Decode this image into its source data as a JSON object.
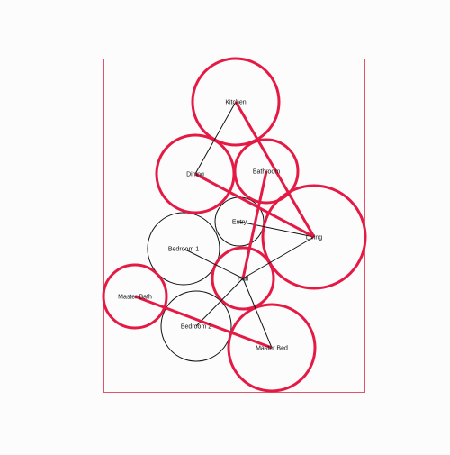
{
  "diagram": {
    "colors": {
      "background": "#fcfcfc",
      "frame": "#e0556a",
      "highlight": "#e41a45",
      "normal": "#111111"
    },
    "rooms": [
      {
        "id": "kitchen",
        "label": "Kitchen",
        "highlighted": true
      },
      {
        "id": "dining",
        "label": "Dining",
        "highlighted": true
      },
      {
        "id": "bathroom",
        "label": "Bathroom",
        "highlighted": true
      },
      {
        "id": "entry",
        "label": "Entry",
        "highlighted": false
      },
      {
        "id": "living",
        "label": "Living",
        "highlighted": true
      },
      {
        "id": "bedroom1",
        "label": "Bedroom 1",
        "highlighted": false
      },
      {
        "id": "hall",
        "label": "Hall",
        "highlighted": true
      },
      {
        "id": "masterbath",
        "label": "Master Bath",
        "highlighted": true
      },
      {
        "id": "bedroom2",
        "label": "Bedroom 2",
        "highlighted": false
      },
      {
        "id": "masterbed",
        "label": "Master Bed",
        "highlighted": true
      }
    ],
    "connections": [
      {
        "from": "kitchen",
        "to": "dining",
        "highlighted": false
      },
      {
        "from": "kitchen",
        "to": "living",
        "highlighted": true
      },
      {
        "from": "dining",
        "to": "living",
        "highlighted": true
      },
      {
        "from": "bathroom",
        "to": "hall",
        "highlighted": true
      },
      {
        "from": "entry",
        "to": "living",
        "highlighted": false
      },
      {
        "from": "living",
        "to": "hall",
        "highlighted": false
      },
      {
        "from": "bedroom1",
        "to": "hall",
        "highlighted": false
      },
      {
        "from": "hall",
        "to": "bedroom2",
        "highlighted": false
      },
      {
        "from": "hall",
        "to": "masterbed",
        "highlighted": false
      },
      {
        "from": "masterbath",
        "to": "masterbed",
        "highlighted": true
      }
    ]
  }
}
